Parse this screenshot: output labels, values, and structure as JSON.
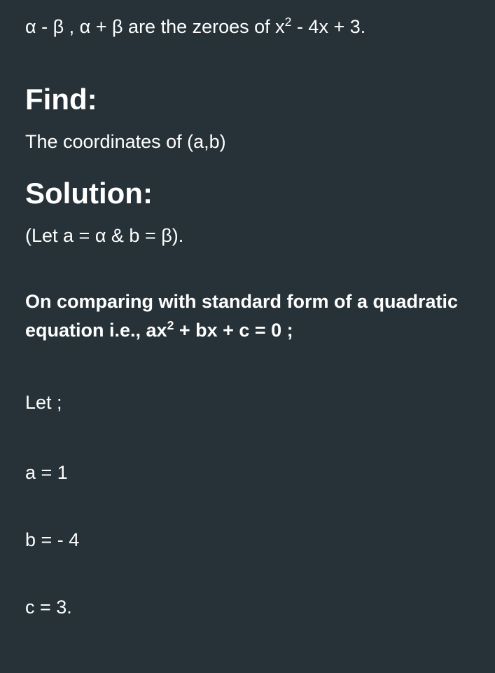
{
  "problem": {
    "statement_pre": "α - β , α + β are the zeroes of x",
    "statement_exp": "2",
    "statement_post": " - 4x + 3."
  },
  "find": {
    "heading": "Find:",
    "text": "The coordinates of (a,b)"
  },
  "solution": {
    "heading": "Solution:",
    "let_note": "(Let a = α & b = β).",
    "comparing_pre": "On comparing with standard form of a quadratic equation i.e., ax",
    "comparing_exp": "2",
    "comparing_post": " + bx + c = 0 ;",
    "let_label": "Let ;",
    "eq_a": "a = 1",
    "eq_b": "b = - 4",
    "eq_c": "c = 3."
  },
  "colors": {
    "background": "#263238",
    "text": "#ffffff"
  },
  "typography": {
    "heading_fontsize": 42,
    "body_fontsize": 27,
    "heading_weight": 700,
    "body_weight": 400
  }
}
